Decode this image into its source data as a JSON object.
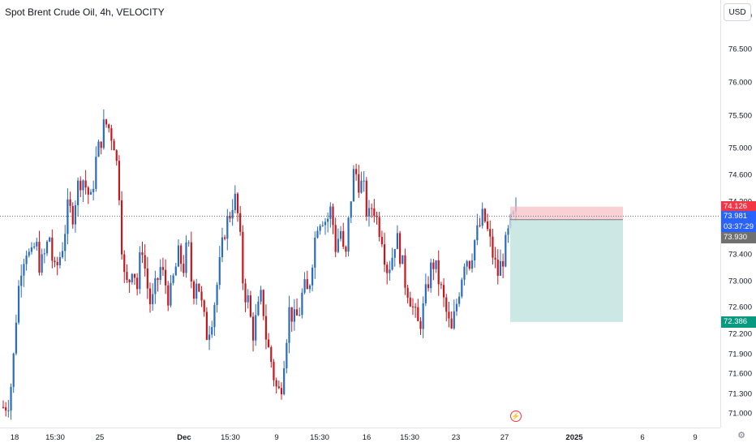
{
  "chart_title": "Spot Brent Crude Oil, 4h, VELOCITY",
  "currency": "USD",
  "colors": {
    "up": "#2a6cbd",
    "down": "#c4181f",
    "risk_zone": "#f7c5c9",
    "target_zone": "#c6e6e2",
    "last_price_line": "#5b6170"
  },
  "price_axis": {
    "ticks": [
      "77.000",
      "76.500",
      "76.000",
      "75.500",
      "75.000",
      "74.600",
      "74.200",
      "73.400",
      "73.000",
      "72.600",
      "72.200",
      "71.900",
      "71.600",
      "71.300",
      "71.000"
    ]
  },
  "price_tags": {
    "stop": {
      "label": "74.126",
      "color": "#f23645"
    },
    "last": {
      "label": "73.981",
      "sub": "03:37:29",
      "color": "#2962ff"
    },
    "entry": {
      "label": "73.930",
      "color": "#707070"
    },
    "target": {
      "label": "72.386",
      "color": "#089981"
    }
  },
  "time_axis": {
    "labels": [
      {
        "text": "18",
        "bold": false
      },
      {
        "text": "15:30",
        "bold": false
      },
      {
        "text": "25",
        "bold": false
      },
      {
        "text": "Dec",
        "bold": true
      },
      {
        "text": "15:30",
        "bold": false
      },
      {
        "text": "9",
        "bold": false
      },
      {
        "text": "15:30",
        "bold": false
      },
      {
        "text": "16",
        "bold": false
      },
      {
        "text": "15:30",
        "bold": false
      },
      {
        "text": "23",
        "bold": false
      },
      {
        "text": "27",
        "bold": false
      },
      {
        "text": "2025",
        "bold": true
      },
      {
        "text": "6",
        "bold": false
      },
      {
        "text": "9",
        "bold": false
      }
    ]
  },
  "icons": {
    "settings": "gear-icon",
    "flash": "lightning-icon"
  },
  "chart_data": {
    "type": "candlestick",
    "title": "Spot Brent Crude Oil, 4h, VELOCITY",
    "y_range": [
      70.95,
      77.2
    ],
    "price_levels": {
      "stop": 74.126,
      "last": 73.981,
      "entry": 73.93,
      "target": 72.386
    },
    "close_path": [
      71.1,
      71.1,
      71.6,
      72.7,
      73.3,
      73.5,
      73.3,
      73.6,
      73.2,
      73.4,
      73.7,
      73.1,
      73.3,
      73.6,
      74.1,
      74.0,
      74.4,
      74.6,
      74.4,
      74.2,
      74.8,
      75.1,
      75.4,
      75.3,
      75.1,
      74.5,
      73.1,
      72.9,
      73.3,
      72.9,
      73.6,
      73.0,
      72.6,
      72.9,
      73.2,
      73.0,
      72.7,
      73.1,
      73.4,
      73.2,
      73.6,
      72.8,
      73.1,
      72.6,
      72.2,
      72.4,
      72.8,
      73.3,
      73.8,
      74.0,
      74.3,
      73.9,
      72.9,
      72.7,
      72.2,
      72.5,
      72.8,
      72.1,
      71.8,
      71.4,
      71.3,
      72.0,
      72.6,
      72.4,
      72.5,
      72.9,
      72.8,
      73.4,
      73.9,
      74.0,
      73.9,
      74.1,
      73.5,
      73.8,
      73.2,
      74.1,
      74.7,
      74.5,
      74.4,
      73.9,
      74.2,
      73.9,
      73.7,
      73.2,
      73.3,
      73.7,
      73.4,
      73.0,
      72.8,
      72.5,
      72.3,
      72.6,
      73.0,
      73.3,
      73.1,
      72.8,
      72.5,
      72.2,
      72.6,
      73.0,
      73.4,
      73.3,
      73.6,
      73.8,
      74.0,
      73.7,
      73.4,
      73.1,
      73.3,
      73.6,
      73.9,
      74.0
    ],
    "pixel_note_omitted": true
  }
}
